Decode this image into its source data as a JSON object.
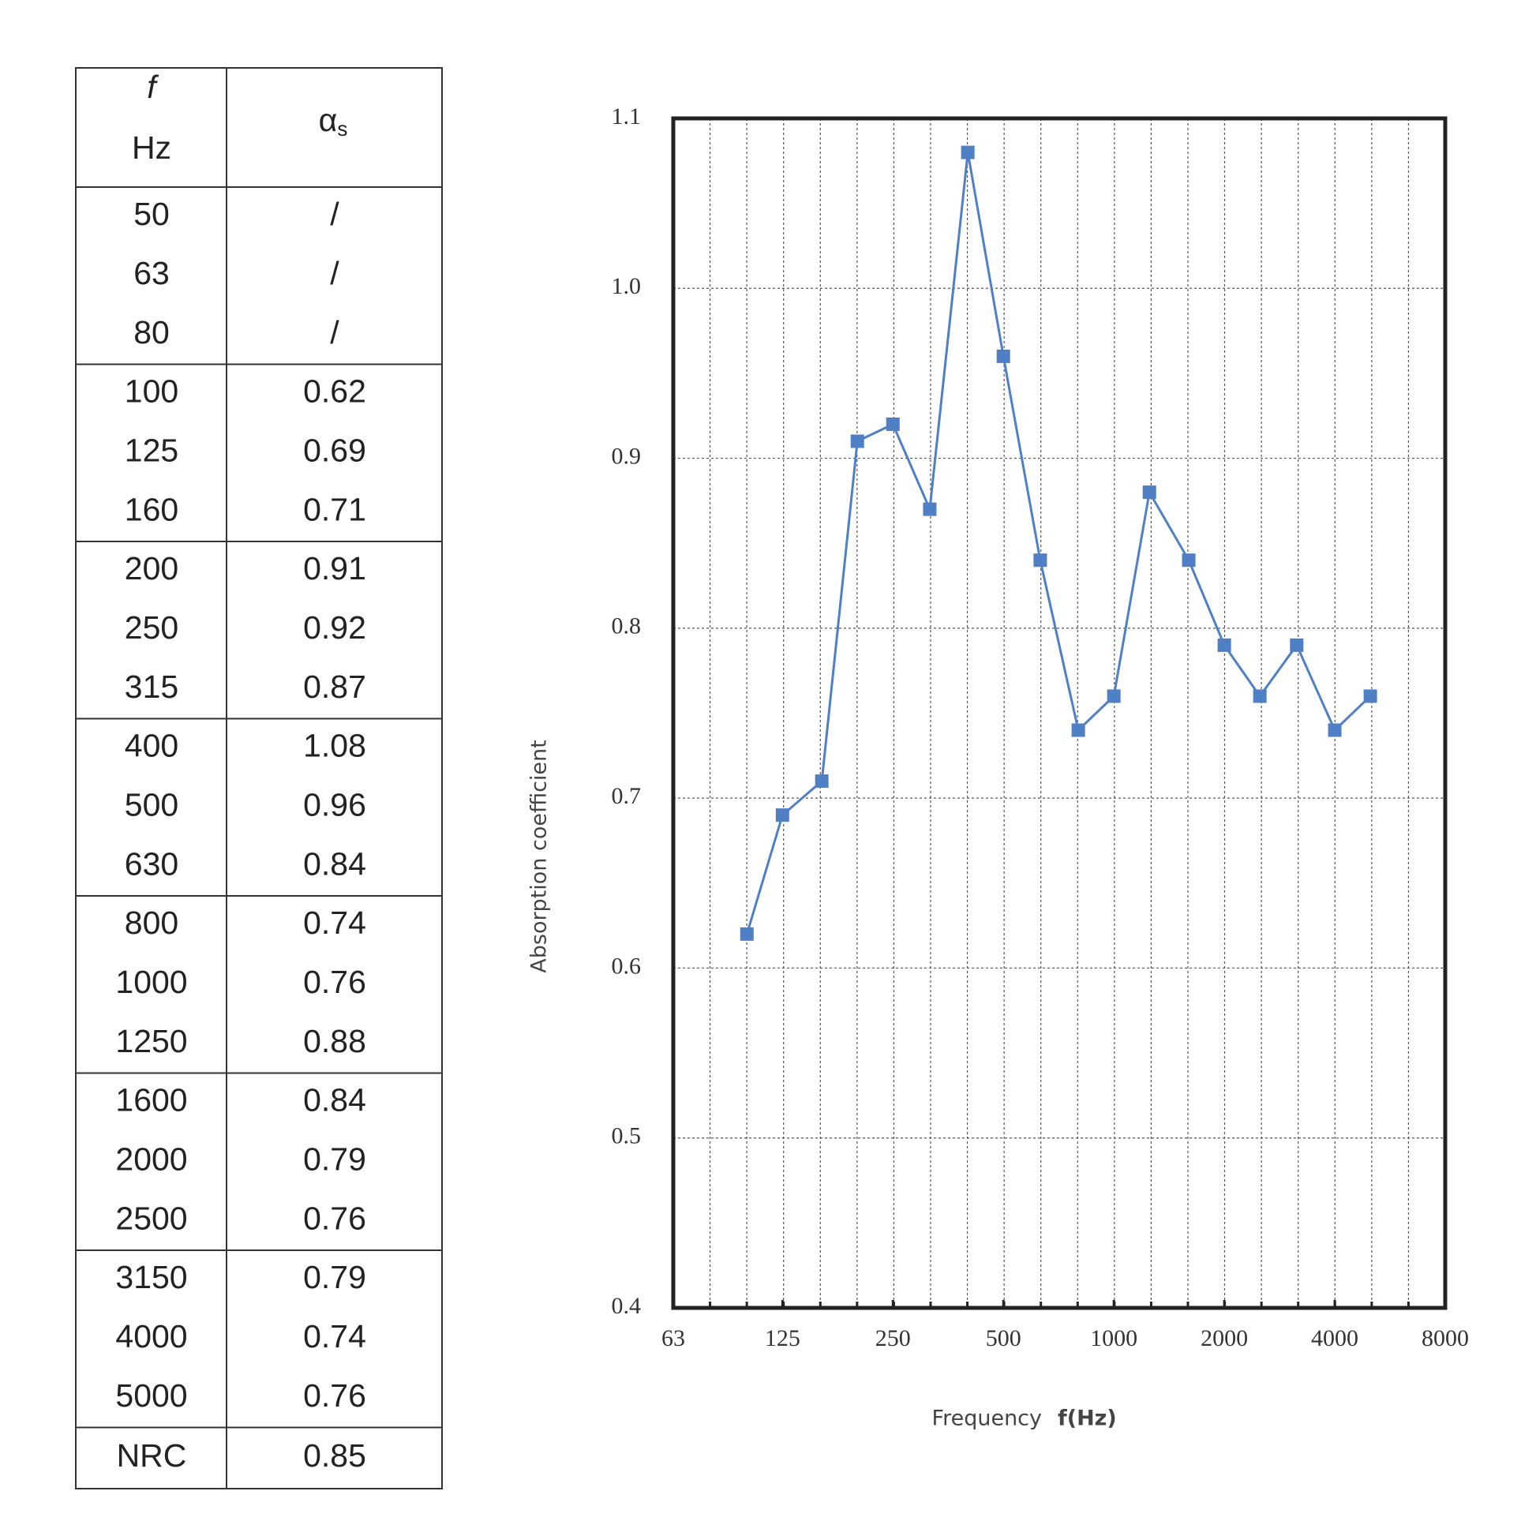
{
  "table": {
    "header": {
      "f": "f",
      "unit": "Hz",
      "alpha": "α",
      "alpha_sub": "s"
    },
    "groups": [
      [
        [
          "50",
          "/"
        ],
        [
          "63",
          "/"
        ],
        [
          "80",
          "/"
        ]
      ],
      [
        [
          "100",
          "0.62"
        ],
        [
          "125",
          "0.69"
        ],
        [
          "160",
          "0.71"
        ]
      ],
      [
        [
          "200",
          "0.91"
        ],
        [
          "250",
          "0.92"
        ],
        [
          "315",
          "0.87"
        ]
      ],
      [
        [
          "400",
          "1.08"
        ],
        [
          "500",
          "0.96"
        ],
        [
          "630",
          "0.84"
        ]
      ],
      [
        [
          "800",
          "0.74"
        ],
        [
          "1000",
          "0.76"
        ],
        [
          "1250",
          "0.88"
        ]
      ],
      [
        [
          "1600",
          "0.84"
        ],
        [
          "2000",
          "0.79"
        ],
        [
          "2500",
          "0.76"
        ]
      ],
      [
        [
          "3150",
          "0.79"
        ],
        [
          "4000",
          "0.74"
        ],
        [
          "5000",
          "0.76"
        ]
      ]
    ],
    "nrc": [
      "NRC",
      "0.85"
    ]
  },
  "chart_data": {
    "type": "line",
    "y_label": "Absorption coefficient",
    "x_label": "Frequency",
    "x_label_unit": "f(Hz)",
    "x": [
      100,
      125,
      160,
      200,
      250,
      315,
      400,
      500,
      630,
      800,
      1000,
      1250,
      1600,
      2000,
      2500,
      3150,
      4000,
      5000
    ],
    "values": [
      0.62,
      0.69,
      0.71,
      0.91,
      0.92,
      0.87,
      1.08,
      0.96,
      0.84,
      0.74,
      0.76,
      0.88,
      0.84,
      0.79,
      0.76,
      0.79,
      0.74,
      0.76
    ],
    "color": "#4f7fc4",
    "xscale": "log",
    "xlim": [
      63,
      8000
    ],
    "xticks": [
      63,
      125,
      250,
      500,
      1000,
      2000,
      4000,
      8000
    ],
    "ylim": [
      0.4,
      1.1
    ],
    "yticks": [
      0.4,
      0.5,
      0.6,
      0.7,
      0.8,
      0.9,
      {
        "value": 1,
        "label": "1.0"
      },
      1.1
    ],
    "grid": true
  }
}
